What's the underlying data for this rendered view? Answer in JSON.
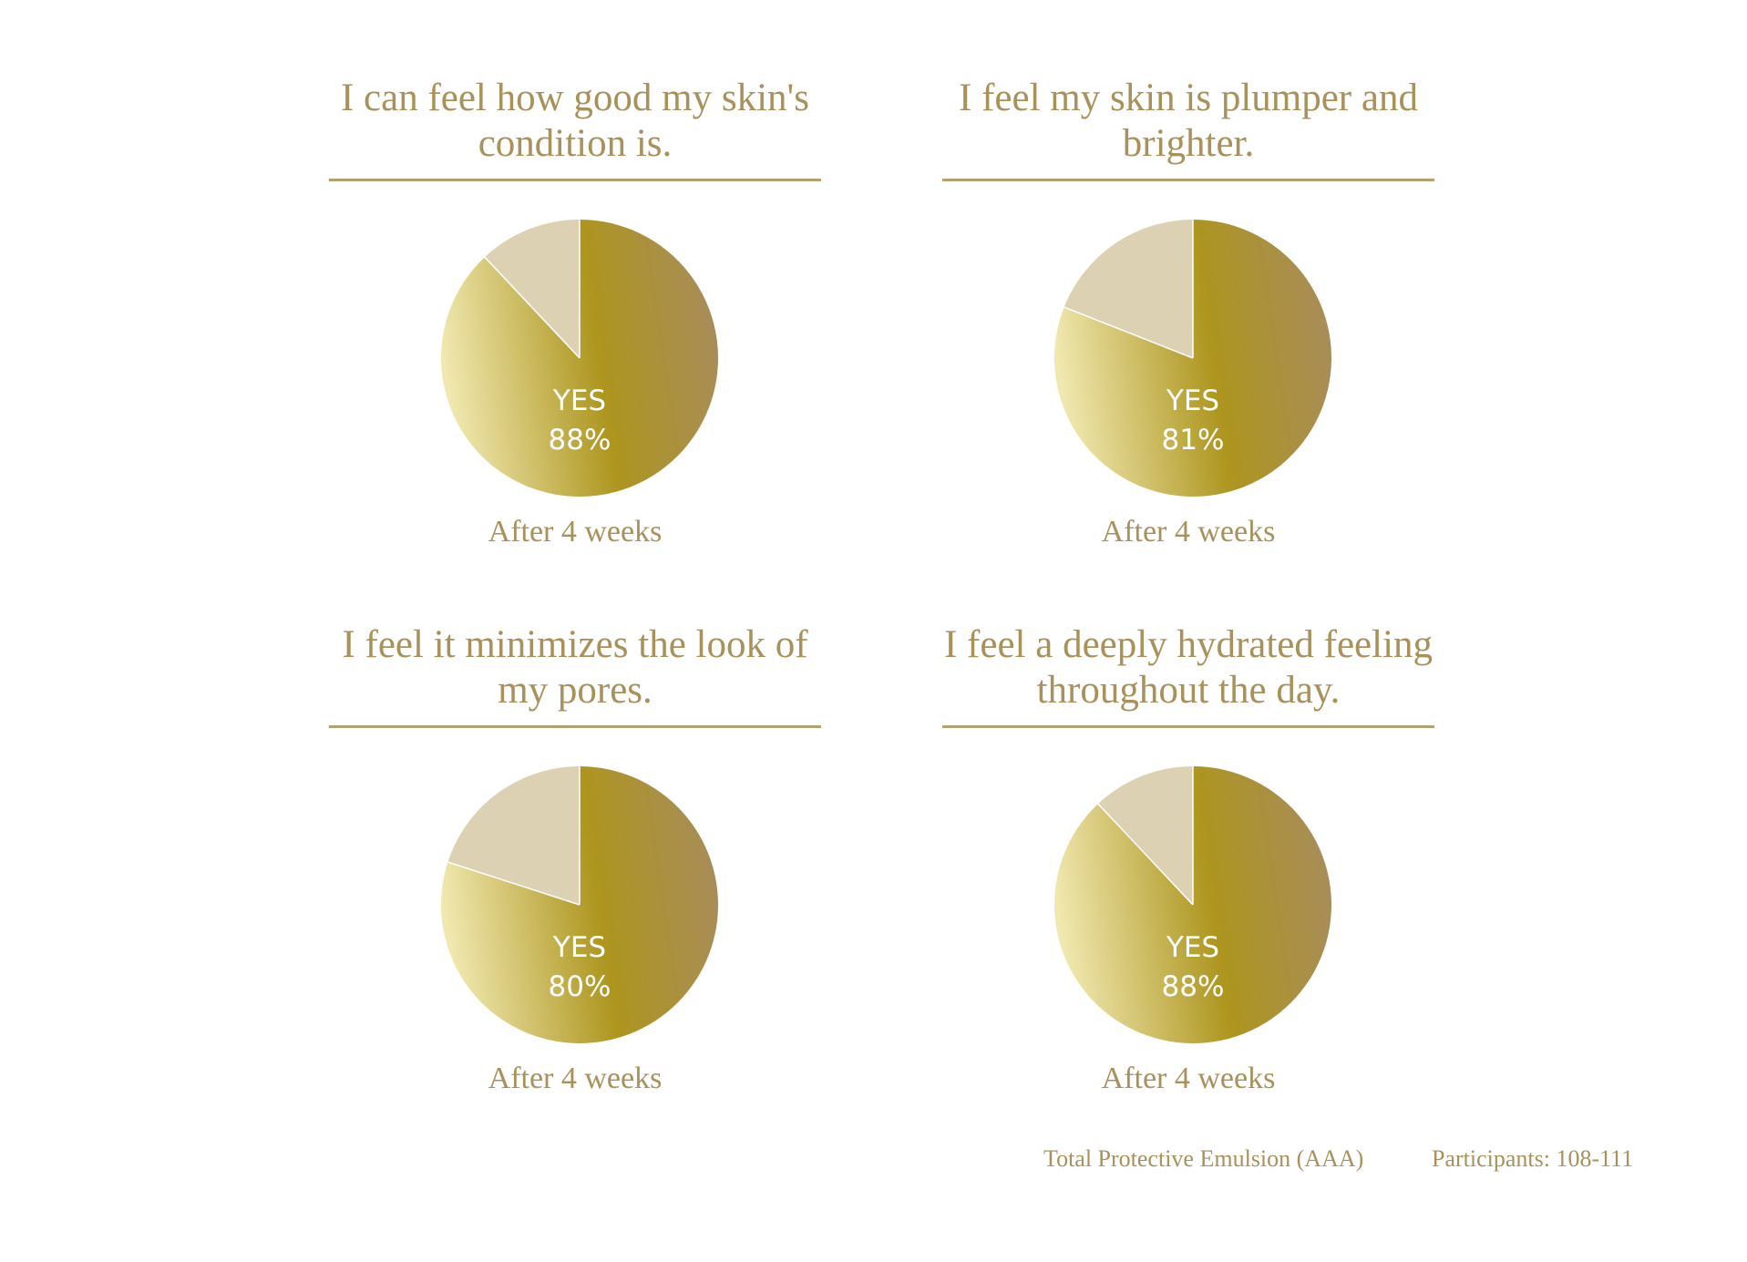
{
  "chart_data": [
    {
      "type": "pie",
      "title": "I can feel how good my skin's condition is.",
      "slices": [
        {
          "name": "YES",
          "value": 88
        },
        {
          "name": "",
          "value": 12
        }
      ],
      "center_label": "YES",
      "center_value": "88%",
      "caption": "After 4 weeks"
    },
    {
      "type": "pie",
      "title": "I feel my skin is plumper and brighter.",
      "slices": [
        {
          "name": "YES",
          "value": 81
        },
        {
          "name": "",
          "value": 19
        }
      ],
      "center_label": "YES",
      "center_value": "81%",
      "caption": "After 4 weeks"
    },
    {
      "type": "pie",
      "title": "I feel it minimizes the look of my pores.",
      "slices": [
        {
          "name": "YES",
          "value": 80
        },
        {
          "name": "",
          "value": 20
        }
      ],
      "center_label": "YES",
      "center_value": "80%",
      "caption": "After 4 weeks"
    },
    {
      "type": "pie",
      "title": "I feel a deeply hydrated feeling throughout the day.",
      "slices": [
        {
          "name": "YES",
          "value": 88
        },
        {
          "name": "",
          "value": 12
        }
      ],
      "center_label": "YES",
      "center_value": "88%",
      "caption": "After 4 weeks"
    }
  ],
  "footer": {
    "product": "Total Protective Emulsion (AAA)",
    "participants": "Participants: 108-111"
  },
  "colors": {
    "text_gold": "#a8915a",
    "rule": "#b49f6e",
    "gold_light": "#f0e8b0",
    "gold_mid": "#ad951e",
    "gold_dark": "#a88c5c",
    "remainder": "#ddd1b4"
  }
}
